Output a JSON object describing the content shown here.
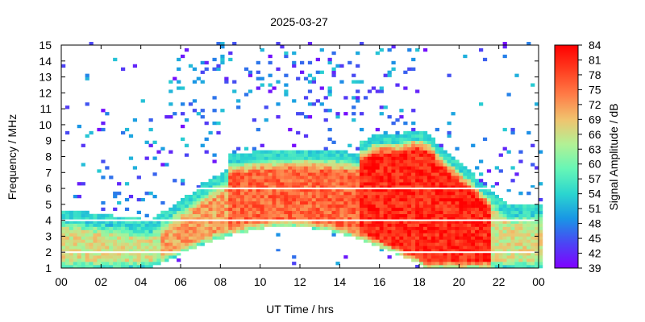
{
  "chart_data": {
    "type": "heatmap",
    "title": "2025-03-27",
    "xlabel": "UT Time / hrs",
    "ylabel": "Frequency / MHz",
    "colorbar_label": "Signal Amplitude / dB",
    "x_ticks": [
      "00",
      "02",
      "04",
      "06",
      "08",
      "10",
      "12",
      "14",
      "16",
      "18",
      "20",
      "22",
      "00"
    ],
    "y_ticks": [
      1,
      2,
      3,
      4,
      5,
      6,
      7,
      8,
      9,
      10,
      11,
      12,
      13,
      14,
      15
    ],
    "xlim": [
      0,
      24
    ],
    "ylim": [
      1,
      15
    ],
    "colorbar_ticks": [
      84,
      81,
      78,
      75,
      72,
      69,
      66,
      63,
      60,
      57,
      54,
      51,
      48,
      45,
      42,
      39
    ],
    "colorbar_range": [
      39,
      84
    ],
    "colormap": [
      "#8000ff",
      "#4b45f4",
      "#1996e5",
      "#2bd6cf",
      "#66f6b6",
      "#b2f195",
      "#f0c36e",
      "#ff7c47",
      "#ff3d1f",
      "#ff0000"
    ],
    "upper_band_hours": [
      5.5,
      18
    ],
    "upper_band_freq": 10,
    "horizontal_gaps_mhz": [
      2,
      4,
      6
    ]
  }
}
